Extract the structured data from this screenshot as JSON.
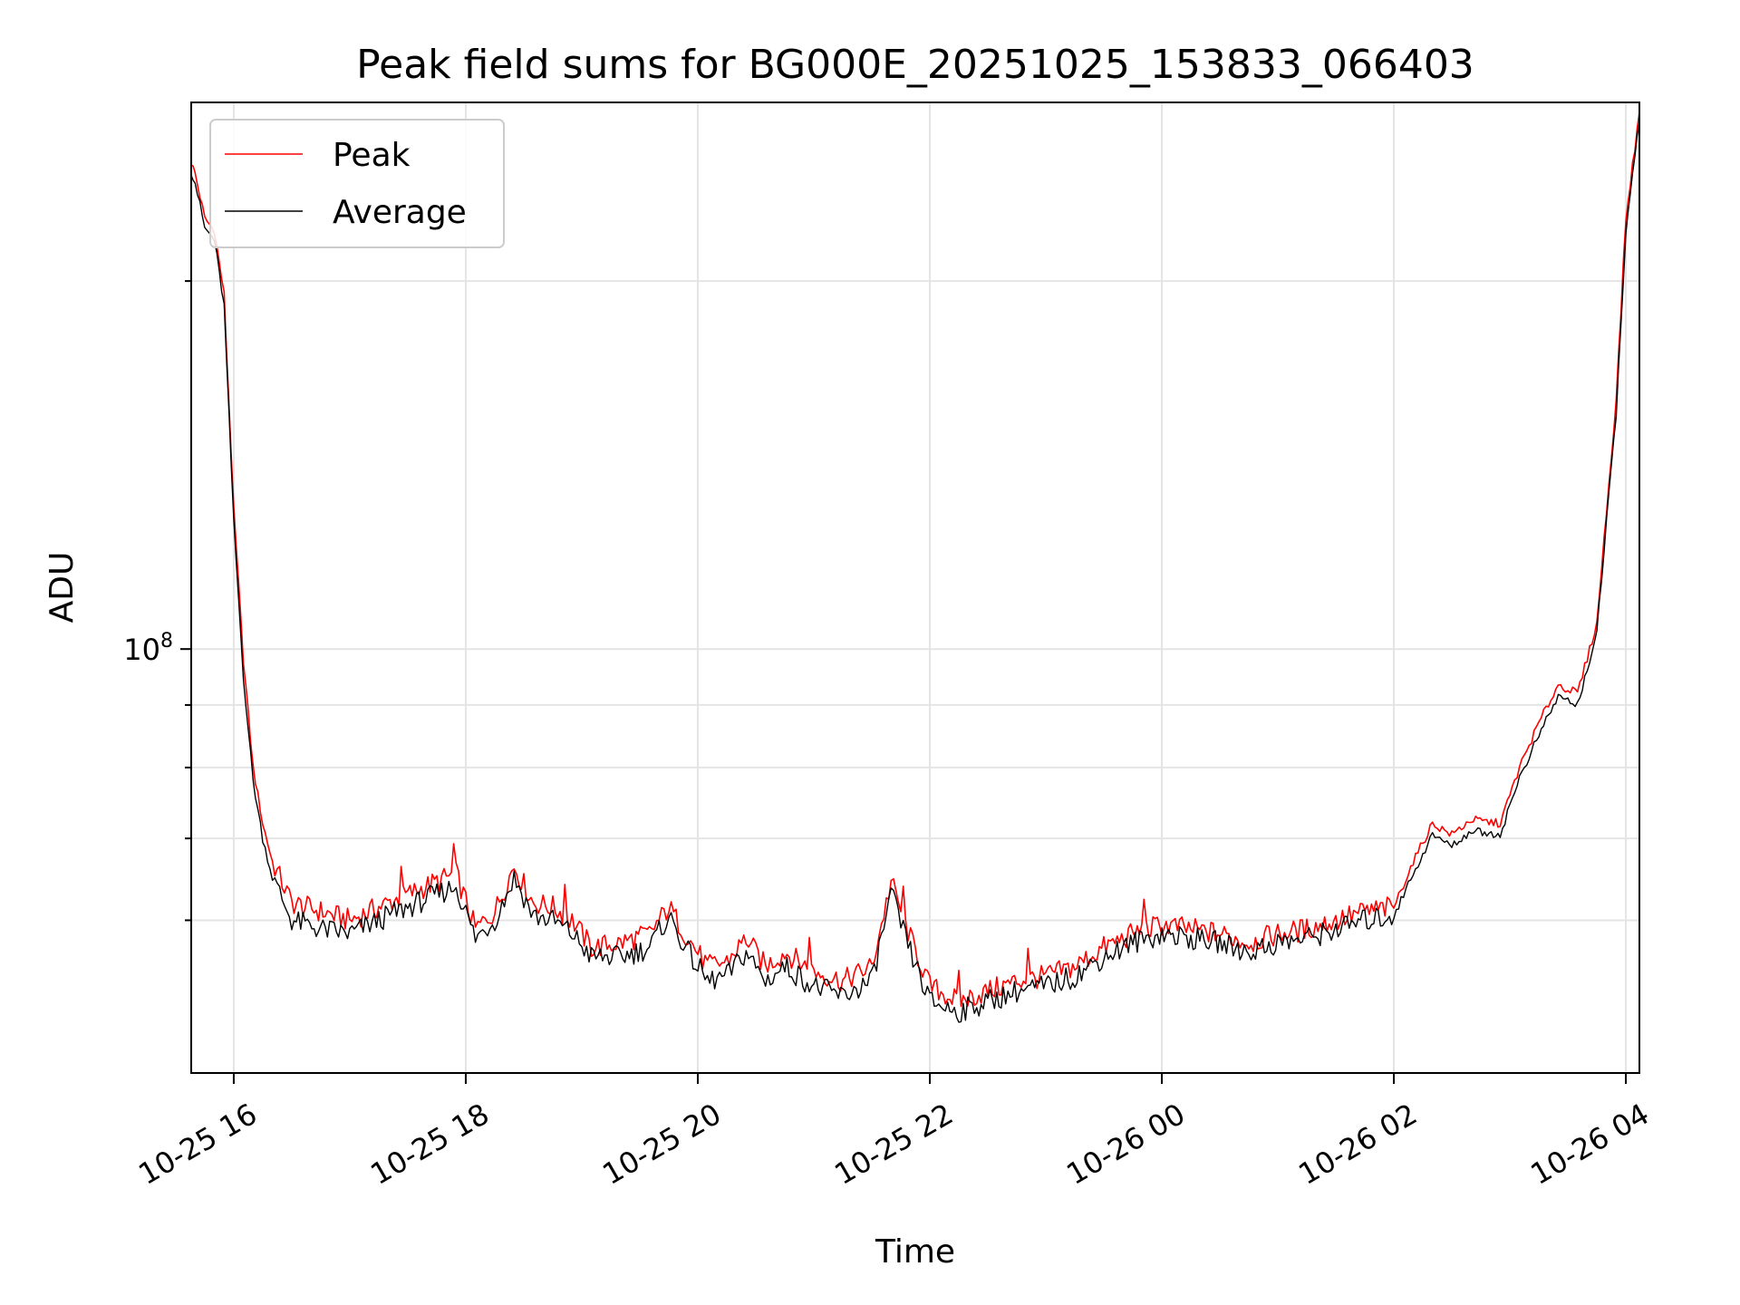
{
  "chart_data": {
    "type": "line",
    "title": "Peak field sums for BG000E_20251025_153833_066403",
    "xlabel": "Time",
    "ylabel": "ADU",
    "y_scale": "log",
    "xlim": [
      "2025-10-25 15:38",
      "2025-10-26 04:07"
    ],
    "ylim": [
      45000000,
      280000000
    ],
    "x_ticks": [
      "10-25 16",
      "10-25 18",
      "10-25 20",
      "10-25 22",
      "10-26 00",
      "10-26 02",
      "10-26 04"
    ],
    "y_ticks": [
      {
        "value": 100000000,
        "base": "10",
        "exp": "8"
      }
    ],
    "y_minor_ticks": [
      60000000,
      70000000,
      80000000,
      90000000,
      200000000
    ],
    "grid": true,
    "legend_position": "top-left",
    "series": [
      {
        "name": "Peak",
        "color": "#ff0000",
        "points": [
          [
            "2025-10-25 15:38",
            250000000
          ],
          [
            "2025-10-25 15:40",
            245000000
          ],
          [
            "2025-10-25 15:45",
            225000000
          ],
          [
            "2025-10-25 15:50",
            220000000
          ],
          [
            "2025-10-25 15:55",
            195000000
          ],
          [
            "2025-10-25 16:00",
            130000000
          ],
          [
            "2025-10-25 16:05",
            98000000
          ],
          [
            "2025-10-25 16:10",
            80000000
          ],
          [
            "2025-10-25 16:15",
            72000000
          ],
          [
            "2025-10-25 16:20",
            67000000
          ],
          [
            "2025-10-25 16:30",
            62000000
          ],
          [
            "2025-10-25 16:45",
            61000000
          ],
          [
            "2025-10-25 17:00",
            60000000
          ],
          [
            "2025-10-25 17:15",
            61500000
          ],
          [
            "2025-10-25 17:30",
            63000000
          ],
          [
            "2025-10-25 17:45",
            64500000
          ],
          [
            "2025-10-25 17:55",
            65500000
          ],
          [
            "2025-10-25 18:05",
            59000000
          ],
          [
            "2025-10-25 18:15",
            61000000
          ],
          [
            "2025-10-25 18:25",
            66500000
          ],
          [
            "2025-10-25 18:35",
            62000000
          ],
          [
            "2025-10-25 18:45",
            61500000
          ],
          [
            "2025-10-25 18:55",
            60000000
          ],
          [
            "2025-10-25 19:05",
            57000000
          ],
          [
            "2025-10-25 19:20",
            57500000
          ],
          [
            "2025-10-25 19:35",
            58500000
          ],
          [
            "2025-10-25 19:45",
            61500000
          ],
          [
            "2025-10-25 19:55",
            58000000
          ],
          [
            "2025-10-25 20:05",
            55000000
          ],
          [
            "2025-10-25 20:15",
            55500000
          ],
          [
            "2025-10-25 20:25",
            58000000
          ],
          [
            "2025-10-25 20:35",
            55000000
          ],
          [
            "2025-10-25 20:45",
            56500000
          ],
          [
            "2025-10-25 21:00",
            54500000
          ],
          [
            "2025-10-25 21:15",
            53500000
          ],
          [
            "2025-10-25 21:30",
            55000000
          ],
          [
            "2025-10-25 21:40",
            64500000
          ],
          [
            "2025-10-25 21:50",
            58000000
          ],
          [
            "2025-10-25 22:00",
            53000000
          ],
          [
            "2025-10-25 22:15",
            51500000
          ],
          [
            "2025-10-25 22:30",
            52500000
          ],
          [
            "2025-10-25 22:45",
            53500000
          ],
          [
            "2025-10-25 23:00",
            54000000
          ],
          [
            "2025-10-25 23:15",
            55000000
          ],
          [
            "2025-10-25 23:30",
            57000000
          ],
          [
            "2025-10-25 23:45",
            58500000
          ],
          [
            "2025-10-26 00:00",
            59500000
          ],
          [
            "2025-10-26 00:15",
            59000000
          ],
          [
            "2025-10-26 00:30",
            58500000
          ],
          [
            "2025-10-26 00:45",
            57500000
          ],
          [
            "2025-10-26 01:00",
            58500000
          ],
          [
            "2025-10-26 01:15",
            59000000
          ],
          [
            "2025-10-26 01:30",
            60000000
          ],
          [
            "2025-10-26 01:45",
            61000000
          ],
          [
            "2025-10-26 02:00",
            61500000
          ],
          [
            "2025-10-26 02:10",
            67000000
          ],
          [
            "2025-10-26 02:20",
            72000000
          ],
          [
            "2025-10-26 02:30",
            70500000
          ],
          [
            "2025-10-26 02:40",
            72500000
          ],
          [
            "2025-10-26 02:55",
            72000000
          ],
          [
            "2025-10-26 03:05",
            80000000
          ],
          [
            "2025-10-26 03:15",
            87000000
          ],
          [
            "2025-10-26 03:25",
            93500000
          ],
          [
            "2025-10-26 03:35",
            92000000
          ],
          [
            "2025-10-26 03:45",
            105000000
          ],
          [
            "2025-10-26 03:55",
            160000000
          ],
          [
            "2025-10-26 04:00",
            225000000
          ],
          [
            "2025-10-26 04:07",
            275000000
          ]
        ]
      },
      {
        "name": "Average",
        "color": "#000000",
        "points": [
          [
            "2025-10-25 15:38",
            246000000
          ],
          [
            "2025-10-25 15:40",
            241000000
          ],
          [
            "2025-10-25 15:45",
            221000000
          ],
          [
            "2025-10-25 15:50",
            216000000
          ],
          [
            "2025-10-25 15:55",
            191000000
          ],
          [
            "2025-10-25 16:00",
            127000000
          ],
          [
            "2025-10-25 16:05",
            95000000
          ],
          [
            "2025-10-25 16:10",
            78000000
          ],
          [
            "2025-10-25 16:15",
            70000000
          ],
          [
            "2025-10-25 16:20",
            65000000
          ],
          [
            "2025-10-25 16:30",
            60000000
          ],
          [
            "2025-10-25 16:45",
            59000000
          ],
          [
            "2025-10-25 17:00",
            58500000
          ],
          [
            "2025-10-25 17:15",
            60000000
          ],
          [
            "2025-10-25 17:30",
            61500000
          ],
          [
            "2025-10-25 17:45",
            63000000
          ],
          [
            "2025-10-25 17:55",
            64000000
          ],
          [
            "2025-10-25 18:05",
            58000000
          ],
          [
            "2025-10-25 18:15",
            60000000
          ],
          [
            "2025-10-25 18:25",
            65000000
          ],
          [
            "2025-10-25 18:35",
            60500000
          ],
          [
            "2025-10-25 18:45",
            60000000
          ],
          [
            "2025-10-25 18:55",
            58500000
          ],
          [
            "2025-10-25 19:05",
            56000000
          ],
          [
            "2025-10-25 19:20",
            56000000
          ],
          [
            "2025-10-25 19:35",
            57000000
          ],
          [
            "2025-10-25 19:45",
            60500000
          ],
          [
            "2025-10-25 19:55",
            56500000
          ],
          [
            "2025-10-25 20:05",
            53500000
          ],
          [
            "2025-10-25 20:15",
            54000000
          ],
          [
            "2025-10-25 20:25",
            56500000
          ],
          [
            "2025-10-25 20:35",
            53500000
          ],
          [
            "2025-10-25 20:45",
            55000000
          ],
          [
            "2025-10-25 21:00",
            53000000
          ],
          [
            "2025-10-25 21:15",
            52000000
          ],
          [
            "2025-10-25 21:30",
            53500000
          ],
          [
            "2025-10-25 21:40",
            63000000
          ],
          [
            "2025-10-25 21:50",
            56500000
          ],
          [
            "2025-10-25 22:00",
            51500000
          ],
          [
            "2025-10-25 22:15",
            50500000
          ],
          [
            "2025-10-25 22:30",
            51500000
          ],
          [
            "2025-10-25 22:45",
            52500000
          ],
          [
            "2025-10-25 23:00",
            53000000
          ],
          [
            "2025-10-25 23:15",
            54000000
          ],
          [
            "2025-10-25 23:30",
            56000000
          ],
          [
            "2025-10-25 23:45",
            57500000
          ],
          [
            "2025-10-26 00:00",
            58500000
          ],
          [
            "2025-10-26 00:15",
            58000000
          ],
          [
            "2025-10-26 00:30",
            57500000
          ],
          [
            "2025-10-26 00:45",
            56500000
          ],
          [
            "2025-10-26 01:00",
            57500000
          ],
          [
            "2025-10-26 01:15",
            58000000
          ],
          [
            "2025-10-26 01:30",
            59000000
          ],
          [
            "2025-10-26 01:45",
            60000000
          ],
          [
            "2025-10-26 02:00",
            60500000
          ],
          [
            "2025-10-26 02:10",
            65500000
          ],
          [
            "2025-10-26 02:20",
            70500000
          ],
          [
            "2025-10-26 02:30",
            69000000
          ],
          [
            "2025-10-26 02:40",
            71000000
          ],
          [
            "2025-10-26 02:55",
            70500000
          ],
          [
            "2025-10-26 03:05",
            78500000
          ],
          [
            "2025-10-26 03:15",
            85000000
          ],
          [
            "2025-10-26 03:25",
            91500000
          ],
          [
            "2025-10-26 03:35",
            90000000
          ],
          [
            "2025-10-26 03:45",
            103000000
          ],
          [
            "2025-10-26 03:55",
            156000000
          ],
          [
            "2025-10-26 04:00",
            220000000
          ],
          [
            "2025-10-26 04:07",
            270000000
          ]
        ]
      }
    ]
  }
}
